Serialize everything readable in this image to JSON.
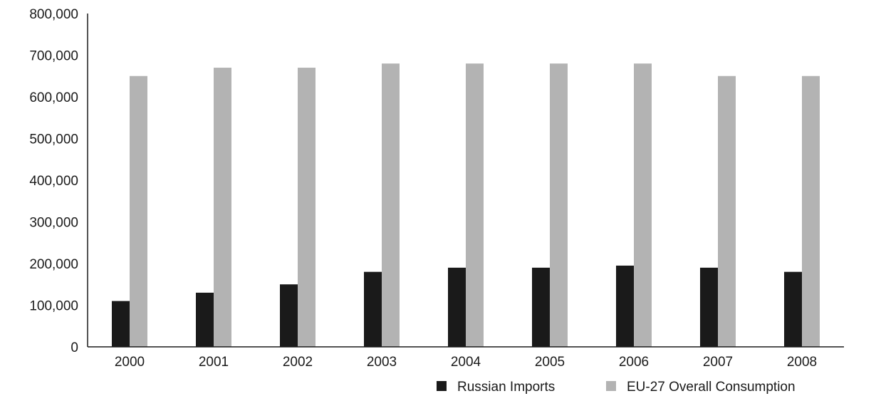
{
  "chart_data": {
    "type": "bar",
    "title": "",
    "xlabel": "",
    "ylabel": "",
    "categories": [
      "2000",
      "2001",
      "2002",
      "2003",
      "2004",
      "2005",
      "2006",
      "2007",
      "2008"
    ],
    "series": [
      {
        "name": "Russian Imports",
        "color": "#1a1a1a",
        "values": [
          110000,
          130000,
          150000,
          180000,
          190000,
          190000,
          195000,
          190000,
          180000
        ]
      },
      {
        "name": "EU-27 Overall Consumption",
        "color": "#b3b3b3",
        "values": [
          650000,
          670000,
          670000,
          680000,
          680000,
          680000,
          680000,
          650000,
          650000
        ]
      }
    ],
    "ylim": [
      0,
      800000
    ],
    "yticks": [
      "0",
      "100,000",
      "200,000",
      "300,000",
      "400,000",
      "500,000",
      "600,000",
      "700,000",
      "800,000"
    ],
    "grid": false,
    "legend_position": "bottom-right"
  }
}
